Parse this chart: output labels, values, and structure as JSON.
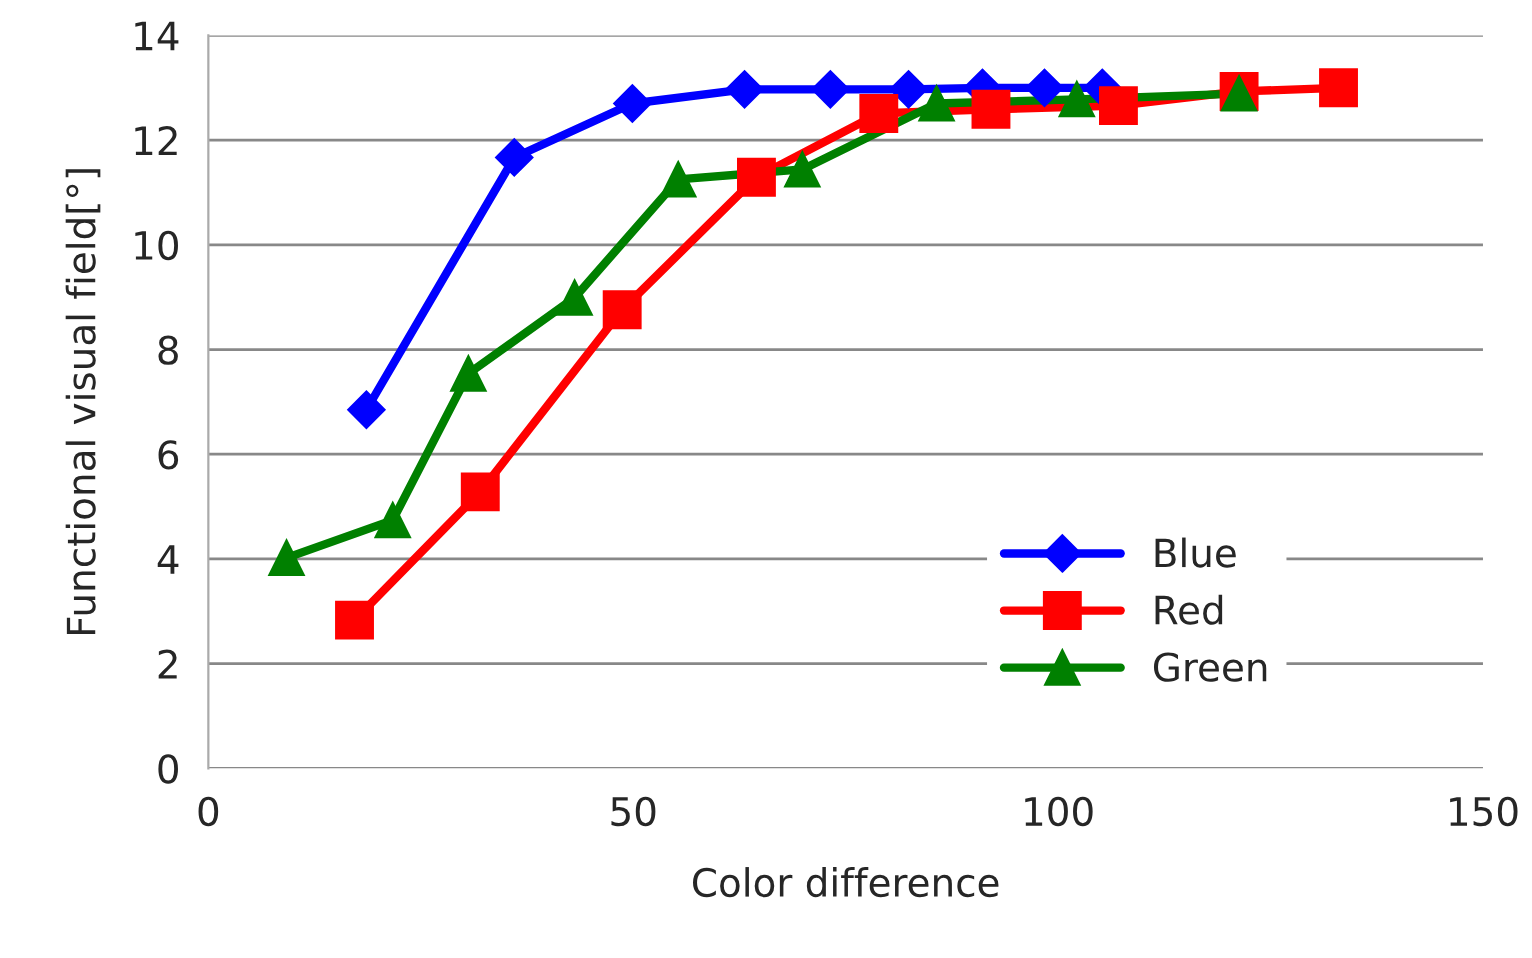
{
  "chart_data": {
    "type": "line",
    "xlabel": "Color difference",
    "ylabel": "Functional visual field[°]",
    "xlim": [
      0,
      150
    ],
    "xticks": [
      0,
      50,
      100,
      150
    ],
    "ylim": [
      0,
      14
    ],
    "yticks": [
      0,
      2,
      4,
      6,
      8,
      10,
      12,
      14
    ],
    "grid": "y",
    "legend": "lower right",
    "line_style": "solid",
    "series": [
      {
        "name": "Blue",
        "color": "#0000ff",
        "marker": "diamond",
        "x": [
          18.6,
          36.0,
          49.9,
          63.1,
          73.2,
          82.4,
          91.1,
          98.4,
          105.2
        ],
        "values": [
          6.85,
          11.67,
          12.7,
          12.97,
          12.97,
          12.97,
          13.0,
          13.0,
          13.0
        ]
      },
      {
        "name": "Red",
        "color": "#ff0000",
        "marker": "square",
        "x": [
          17.2,
          32.0,
          48.7,
          64.5,
          78.9,
          92.1,
          107.1,
          121.3,
          133.0
        ],
        "values": [
          2.83,
          5.28,
          8.76,
          11.29,
          12.51,
          12.59,
          12.66,
          12.93,
          13.0
        ]
      },
      {
        "name": "Green",
        "color": "#008000",
        "marker": "triangle",
        "x": [
          9.2,
          21.7,
          30.6,
          43.1,
          55.3,
          69.9,
          85.7,
          102.2,
          121.3
        ],
        "values": [
          4.02,
          4.74,
          7.54,
          8.99,
          11.25,
          11.44,
          12.7,
          12.78,
          12.89
        ]
      }
    ]
  }
}
